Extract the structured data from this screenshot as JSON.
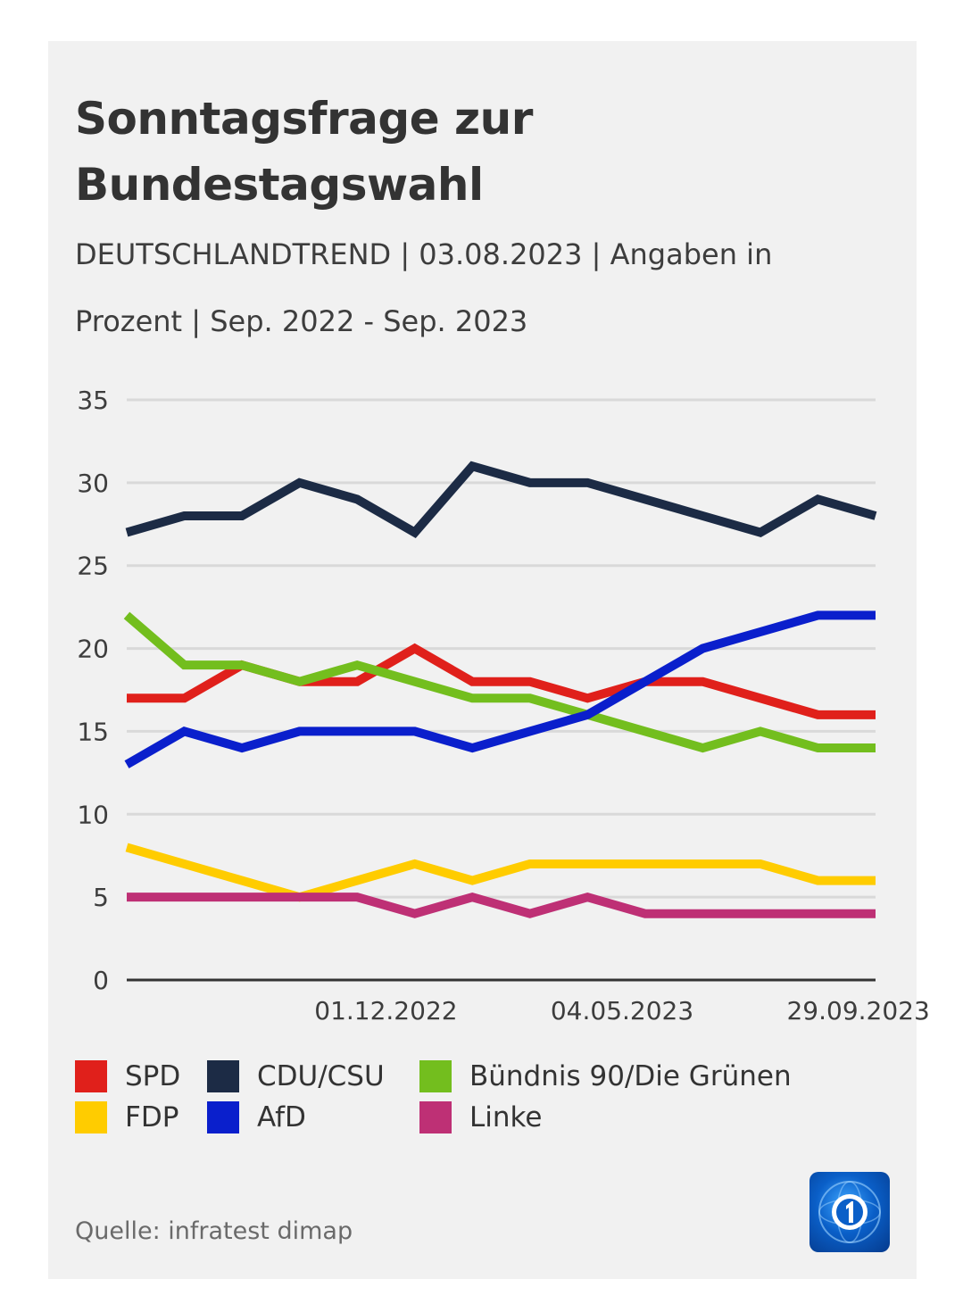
{
  "title": "Sonntagsfrage zur Bundestagswahl",
  "subtitle": "DEUTSCHLANDTREND | 03.08.2023 | Angaben in Prozent | Sep. 2022 - Sep. 2023",
  "source": "Quelle: infratest dimap",
  "logo": {
    "icon": "ard-tagesschau-logo-icon",
    "color": "#0a5fc8"
  },
  "chart_data": {
    "type": "line",
    "x": [
      0,
      1,
      2,
      3,
      4,
      5,
      6,
      7,
      8,
      9,
      10,
      11,
      12,
      13
    ],
    "xticks": [
      {
        "x": 4.5,
        "label": "01.12.2022"
      },
      {
        "x": 8.6,
        "label": "04.05.2023"
      },
      {
        "x": 12.7,
        "label": "29.09.2023"
      }
    ],
    "ylim": [
      0,
      35
    ],
    "yticks": [
      0,
      5,
      10,
      15,
      20,
      25,
      30,
      35
    ],
    "grid": true,
    "legend_position": "bottom",
    "series": [
      {
        "name": "SPD",
        "color": "#e0201b",
        "values": [
          17,
          17,
          19,
          18,
          18,
          20,
          18,
          18,
          17,
          18,
          18,
          17,
          16,
          16
        ]
      },
      {
        "name": "CDU/CSU",
        "color": "#1c2b45",
        "values": [
          27,
          28,
          28,
          30,
          29,
          27,
          31,
          30,
          30,
          29,
          28,
          27,
          29,
          28
        ]
      },
      {
        "name": "Bündnis 90/Die Grünen",
        "color": "#73be1e",
        "values": [
          22,
          19,
          19,
          18,
          19,
          18,
          17,
          17,
          16,
          15,
          14,
          15,
          14,
          14
        ]
      },
      {
        "name": "FDP",
        "color": "#ffcc00",
        "values": [
          8,
          7,
          6,
          5,
          6,
          7,
          6,
          7,
          7,
          7,
          7,
          7,
          6,
          6
        ]
      },
      {
        "name": "AfD",
        "color": "#0a1fcc",
        "values": [
          13,
          15,
          14,
          15,
          15,
          15,
          14,
          15,
          16,
          18,
          20,
          21,
          22,
          22
        ]
      },
      {
        "name": "Linke",
        "color": "#be3075",
        "values": [
          5,
          5,
          5,
          5,
          5,
          4,
          5,
          4,
          5,
          4,
          4,
          4,
          4,
          4
        ]
      }
    ]
  }
}
